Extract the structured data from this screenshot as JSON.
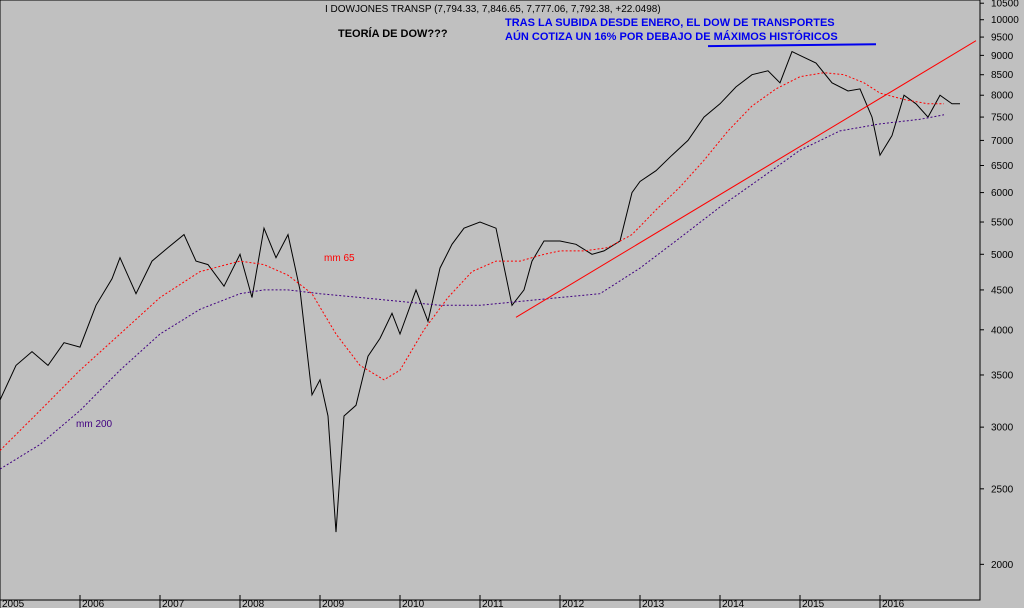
{
  "chart_data": {
    "type": "line",
    "title": "I DOWJONES TRANSP (7,794.33, 7,846.65, 7,777.06, 7,792.38, +22.0498)",
    "heading": "TEORÍA DE DOW???",
    "annotation_lines": [
      "TRAS LA SUBIDA DESDE ENERO, EL DOW DE TRANSPORTES",
      "AÚN COTIZA UN 16% POR DEBAJO DE MÁXIMOS HISTÓRICOS"
    ],
    "y_scale": "log",
    "ylim": [
      1800,
      10600
    ],
    "xlim": [
      2005.0,
      2017.25
    ],
    "y_ticks": [
      10500,
      10000,
      9500,
      9000,
      8500,
      8000,
      7500,
      7000,
      6500,
      6000,
      5500,
      5000,
      4500,
      4000,
      3500,
      3000,
      2500,
      2000
    ],
    "x_ticks": [
      "2005",
      "2006",
      "2007",
      "2008",
      "2009",
      "2010",
      "2011",
      "2012",
      "2013",
      "2014",
      "2015",
      "2016"
    ],
    "grid": false,
    "colors": {
      "background": "#c0c0c0",
      "price": "#000000",
      "mm65": "#ff0000",
      "mm200": "#400080",
      "trendline": "#ff0000",
      "max_line": "#0000ee",
      "annotation": "#0000ee"
    },
    "series": [
      {
        "name": "",
        "style": "solid",
        "x": [
          2005.0,
          2005.2,
          2005.4,
          2005.6,
          2005.8,
          2006.0,
          2006.2,
          2006.4,
          2006.5,
          2006.7,
          2006.9,
          2007.1,
          2007.3,
          2007.45,
          2007.6,
          2007.8,
          2008.0,
          2008.15,
          2008.3,
          2008.45,
          2008.6,
          2008.75,
          2008.9,
          2009.0,
          2009.1,
          2009.2,
          2009.3,
          2009.45,
          2009.6,
          2009.75,
          2009.9,
          2010.0,
          2010.2,
          2010.35,
          2010.5,
          2010.65,
          2010.8,
          2011.0,
          2011.2,
          2011.4,
          2011.55,
          2011.65,
          2011.8,
          2012.0,
          2012.2,
          2012.4,
          2012.55,
          2012.75,
          2012.9,
          2013.0,
          2013.2,
          2013.4,
          2013.6,
          2013.8,
          2014.0,
          2014.2,
          2014.4,
          2014.6,
          2014.75,
          2014.9,
          2015.0,
          2015.2,
          2015.4,
          2015.6,
          2015.75,
          2015.9,
          2016.0,
          2016.15,
          2016.3,
          2016.45,
          2016.6,
          2016.75,
          2016.9,
          2017.0
        ],
        "y": [
          3250,
          3600,
          3750,
          3600,
          3850,
          3800,
          4300,
          4650,
          4950,
          4450,
          4900,
          5100,
          5300,
          4900,
          4850,
          4550,
          5000,
          4400,
          5400,
          4950,
          5300,
          4500,
          3300,
          3450,
          3100,
          2200,
          3100,
          3200,
          3700,
          3900,
          4200,
          3950,
          4500,
          4100,
          4800,
          5150,
          5400,
          5500,
          5400,
          4300,
          4500,
          4900,
          5200,
          5200,
          5150,
          5000,
          5050,
          5200,
          6000,
          6200,
          6400,
          6700,
          7000,
          7500,
          7800,
          8200,
          8500,
          8600,
          8300,
          9100,
          9000,
          8800,
          8300,
          8100,
          8150,
          7500,
          6700,
          7100,
          8000,
          7800,
          7500,
          8000,
          7800,
          7800
        ]
      },
      {
        "name": "mm 65",
        "style": "dashed",
        "x": [
          2005.0,
          2005.5,
          2006.0,
          2006.5,
          2007.0,
          2007.5,
          2008.0,
          2008.3,
          2008.6,
          2008.9,
          2009.2,
          2009.5,
          2009.8,
          2010.0,
          2010.3,
          2010.6,
          2010.9,
          2011.2,
          2011.5,
          2011.8,
          2012.0,
          2012.3,
          2012.6,
          2012.9,
          2013.2,
          2013.5,
          2013.8,
          2014.1,
          2014.4,
          2014.7,
          2015.0,
          2015.3,
          2015.55,
          2015.8,
          2016.0,
          2016.3,
          2016.6,
          2016.8
        ],
        "y": [
          2800,
          3150,
          3550,
          3950,
          4400,
          4750,
          4900,
          4850,
          4700,
          4450,
          3950,
          3600,
          3450,
          3550,
          4000,
          4400,
          4750,
          4900,
          4900,
          5000,
          5050,
          5050,
          5100,
          5300,
          5700,
          6100,
          6600,
          7200,
          7750,
          8150,
          8450,
          8550,
          8500,
          8300,
          8050,
          7900,
          7800,
          7800
        ]
      },
      {
        "name": "mm 200",
        "style": "dashed",
        "x": [
          2005.0,
          2005.5,
          2006.0,
          2006.5,
          2007.0,
          2007.5,
          2008.0,
          2008.3,
          2008.6,
          2009.0,
          2009.5,
          2010.0,
          2010.5,
          2011.0,
          2011.5,
          2012.0,
          2012.5,
          2013.0,
          2013.5,
          2014.0,
          2014.5,
          2015.0,
          2015.5,
          2016.0,
          2016.5,
          2016.8
        ],
        "y": [
          2650,
          2850,
          3150,
          3550,
          3950,
          4250,
          4450,
          4500,
          4500,
          4450,
          4400,
          4350,
          4300,
          4300,
          4350,
          4400,
          4450,
          4800,
          5250,
          5750,
          6250,
          6800,
          7200,
          7350,
          7450,
          7550
        ]
      }
    ],
    "trendline": {
      "x": [
        2011.45,
        2017.2
      ],
      "y": [
        4150,
        9400
      ]
    },
    "max_line": {
      "x": [
        2013.85,
        2015.95
      ],
      "y": [
        9250,
        9300
      ]
    },
    "series_labels": [
      {
        "text": "mm 65",
        "x": 2009.05,
        "y": 4900,
        "color": "#ff0000"
      },
      {
        "text": "mm 200",
        "x": 2005.95,
        "y": 3000,
        "color": "#400080"
      }
    ]
  }
}
